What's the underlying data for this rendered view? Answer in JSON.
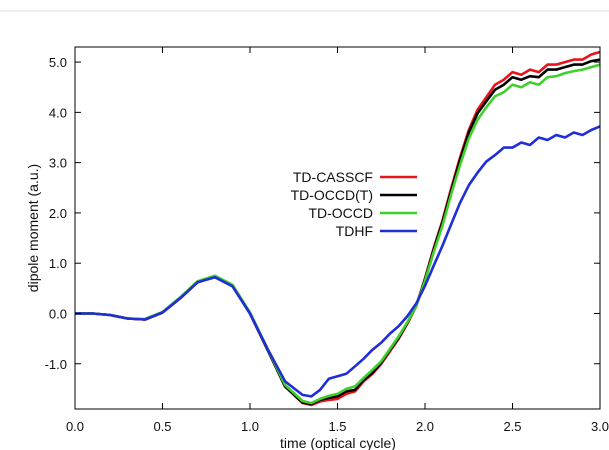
{
  "chart_data": {
    "type": "line",
    "title": "",
    "xlabel": "time (optical cycle)",
    "ylabel": "dipole moment (a.u.)",
    "xlim": [
      0.0,
      3.0
    ],
    "ylim": [
      -1.9,
      5.3
    ],
    "xticks": [
      0.0,
      0.5,
      1.0,
      1.5,
      2.0,
      2.5,
      3.0
    ],
    "xtick_labels": [
      "0.0",
      "0.5",
      "1.0",
      "1.5",
      "2.0",
      "2.5",
      "3.0"
    ],
    "yticks": [
      -1.0,
      0.0,
      1.0,
      2.0,
      3.0,
      4.0,
      5.0
    ],
    "ytick_labels": [
      "-1.0",
      "0.0",
      "1.0",
      "2.0",
      "3.0",
      "4.0",
      "5.0"
    ],
    "grid": false,
    "legend_position": "center",
    "series": [
      {
        "name": "TD-CASSCF",
        "color": "#e8141c",
        "x": [
          0.0,
          0.1,
          0.2,
          0.3,
          0.4,
          0.5,
          0.6,
          0.7,
          0.8,
          0.9,
          1.0,
          1.1,
          1.2,
          1.3,
          1.35,
          1.4,
          1.45,
          1.5,
          1.55,
          1.6,
          1.65,
          1.7,
          1.75,
          1.8,
          1.85,
          1.9,
          1.95,
          2.0,
          2.05,
          2.1,
          2.15,
          2.2,
          2.25,
          2.3,
          2.35,
          2.4,
          2.45,
          2.5,
          2.55,
          2.6,
          2.65,
          2.7,
          2.75,
          2.8,
          2.85,
          2.9,
          2.95,
          3.0
        ],
        "y": [
          0.0,
          0.0,
          -0.03,
          -0.1,
          -0.12,
          0.02,
          0.3,
          0.62,
          0.73,
          0.55,
          0.0,
          -0.72,
          -1.45,
          -1.78,
          -1.82,
          -1.75,
          -1.72,
          -1.7,
          -1.6,
          -1.55,
          -1.35,
          -1.2,
          -1.0,
          -0.75,
          -0.5,
          -0.2,
          0.15,
          0.7,
          1.3,
          1.85,
          2.5,
          3.1,
          3.65,
          4.05,
          4.3,
          4.55,
          4.65,
          4.8,
          4.75,
          4.85,
          4.8,
          4.95,
          4.95,
          5.0,
          5.05,
          5.05,
          5.15,
          5.2
        ]
      },
      {
        "name": "TD-OCCD(T)",
        "color": "#000000",
        "x": [
          0.0,
          0.1,
          0.2,
          0.3,
          0.4,
          0.5,
          0.6,
          0.7,
          0.8,
          0.9,
          1.0,
          1.1,
          1.2,
          1.3,
          1.35,
          1.4,
          1.45,
          1.5,
          1.55,
          1.6,
          1.65,
          1.7,
          1.75,
          1.8,
          1.85,
          1.9,
          1.95,
          2.0,
          2.05,
          2.1,
          2.15,
          2.2,
          2.25,
          2.3,
          2.35,
          2.4,
          2.45,
          2.5,
          2.55,
          2.6,
          2.65,
          2.7,
          2.75,
          2.8,
          2.85,
          2.9,
          2.95,
          3.0
        ],
        "y": [
          0.0,
          0.0,
          -0.03,
          -0.1,
          -0.12,
          0.02,
          0.3,
          0.62,
          0.73,
          0.55,
          0.0,
          -0.72,
          -1.45,
          -1.77,
          -1.8,
          -1.72,
          -1.68,
          -1.65,
          -1.55,
          -1.52,
          -1.32,
          -1.18,
          -0.98,
          -0.72,
          -0.48,
          -0.18,
          0.15,
          0.68,
          1.27,
          1.82,
          2.45,
          3.05,
          3.6,
          3.98,
          4.22,
          4.45,
          4.55,
          4.7,
          4.65,
          4.72,
          4.7,
          4.85,
          4.85,
          4.9,
          4.95,
          4.95,
          5.02,
          5.05
        ]
      },
      {
        "name": "TD-OCCD",
        "color": "#3ed12a",
        "x": [
          0.0,
          0.1,
          0.2,
          0.3,
          0.4,
          0.5,
          0.6,
          0.7,
          0.8,
          0.9,
          1.0,
          1.1,
          1.2,
          1.3,
          1.35,
          1.4,
          1.45,
          1.5,
          1.55,
          1.6,
          1.65,
          1.7,
          1.75,
          1.8,
          1.85,
          1.9,
          1.95,
          2.0,
          2.05,
          2.1,
          2.15,
          2.2,
          2.25,
          2.3,
          2.35,
          2.4,
          2.45,
          2.5,
          2.55,
          2.6,
          2.65,
          2.7,
          2.75,
          2.8,
          2.85,
          2.9,
          2.95,
          3.0
        ],
        "y": [
          0.0,
          0.0,
          -0.03,
          -0.1,
          -0.11,
          0.03,
          0.32,
          0.64,
          0.75,
          0.57,
          0.02,
          -0.7,
          -1.42,
          -1.74,
          -1.78,
          -1.7,
          -1.64,
          -1.6,
          -1.5,
          -1.45,
          -1.28,
          -1.12,
          -0.95,
          -0.7,
          -0.45,
          -0.17,
          0.15,
          0.65,
          1.22,
          1.75,
          2.38,
          2.95,
          3.48,
          3.85,
          4.1,
          4.32,
          4.4,
          4.55,
          4.5,
          4.6,
          4.55,
          4.7,
          4.72,
          4.78,
          4.82,
          4.85,
          4.9,
          4.95
        ]
      },
      {
        "name": "TDHF",
        "color": "#1f2ed6",
        "x": [
          0.0,
          0.1,
          0.2,
          0.3,
          0.4,
          0.5,
          0.6,
          0.7,
          0.8,
          0.9,
          1.0,
          1.1,
          1.2,
          1.3,
          1.35,
          1.4,
          1.45,
          1.5,
          1.55,
          1.6,
          1.65,
          1.7,
          1.75,
          1.8,
          1.85,
          1.9,
          1.95,
          2.0,
          2.05,
          2.1,
          2.15,
          2.2,
          2.25,
          2.3,
          2.35,
          2.4,
          2.45,
          2.5,
          2.55,
          2.6,
          2.65,
          2.7,
          2.75,
          2.8,
          2.85,
          2.9,
          2.95,
          3.0
        ],
        "y": [
          0.0,
          0.0,
          -0.03,
          -0.1,
          -0.12,
          0.02,
          0.3,
          0.62,
          0.72,
          0.54,
          0.0,
          -0.7,
          -1.35,
          -1.62,
          -1.65,
          -1.52,
          -1.3,
          -1.25,
          -1.2,
          -1.05,
          -0.9,
          -0.72,
          -0.58,
          -0.4,
          -0.25,
          -0.05,
          0.2,
          0.55,
          0.95,
          1.35,
          1.78,
          2.2,
          2.55,
          2.8,
          3.02,
          3.15,
          3.3,
          3.3,
          3.4,
          3.35,
          3.5,
          3.45,
          3.55,
          3.5,
          3.6,
          3.55,
          3.65,
          3.72
        ]
      }
    ]
  }
}
